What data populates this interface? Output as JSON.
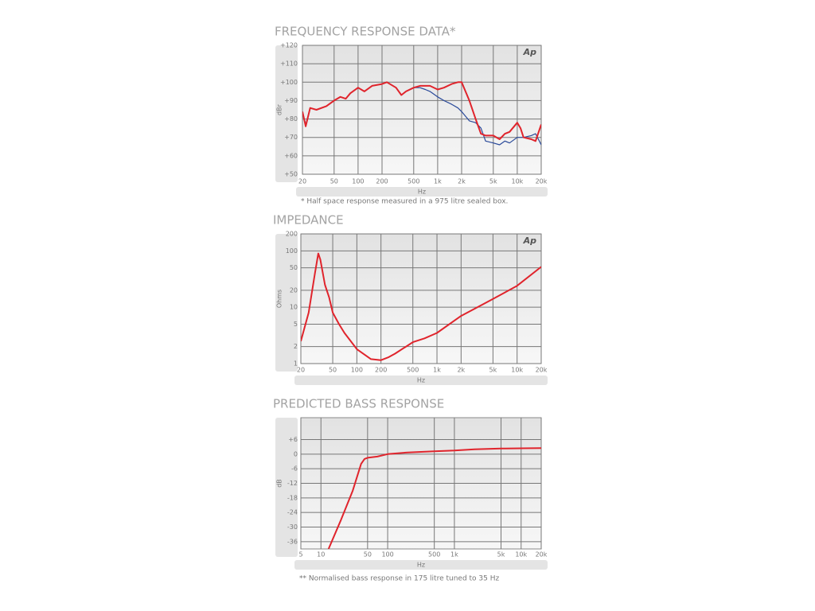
{
  "chart_data": [
    {
      "type": "line",
      "title": "FREQUENCY RESPONSE DATA*",
      "logo": "Ap",
      "y_label": "dBr",
      "x_label": "Hz",
      "note": "* Half space response measured in a 975 litre sealed box.",
      "log_x": true,
      "log_y": false,
      "grid": true,
      "xlim": [
        20,
        20000
      ],
      "xticks": [
        20,
        50,
        100,
        200,
        500,
        {
          "value": 1000,
          "label": "1k"
        },
        {
          "value": 2000,
          "label": "2k"
        },
        {
          "value": 5000,
          "label": "5k"
        },
        {
          "value": 10000,
          "label": "10k"
        },
        {
          "value": 20000,
          "label": "20k"
        }
      ],
      "ylim": [
        50,
        120
      ],
      "yticks": [
        {
          "value": 50,
          "label": "+50"
        },
        {
          "value": 60,
          "label": "+60"
        },
        {
          "value": 70,
          "label": "+70"
        },
        {
          "value": 80,
          "label": "+80"
        },
        {
          "value": 90,
          "label": "+90"
        },
        {
          "value": 100,
          "label": "+100"
        },
        {
          "value": 110,
          "label": "+110"
        },
        {
          "value": 120,
          "label": "+120"
        }
      ],
      "x": [
        20,
        22,
        25,
        30,
        40,
        50,
        60,
        70,
        80,
        100,
        120,
        150,
        200,
        230,
        300,
        350,
        400,
        500,
        600,
        700,
        800,
        1000,
        1200,
        1500,
        1800,
        2000,
        2500,
        3000,
        3500,
        4000,
        5000,
        6000,
        7000,
        8000,
        10000,
        11000,
        12000,
        15000,
        17000,
        20000
      ],
      "series": [
        {
          "color": "#2a4a9a",
          "width": 1.2,
          "values": [
            84,
            77,
            86,
            85,
            87,
            90,
            92,
            91,
            94,
            97,
            95,
            98,
            99,
            100,
            97,
            93,
            95,
            97,
            97,
            96,
            95,
            92,
            90,
            88,
            86,
            84,
            79,
            78,
            75,
            68,
            67,
            66,
            68,
            67,
            70,
            70,
            70,
            71,
            72,
            66
          ]
        },
        {
          "color": "#e0242c",
          "width": 2,
          "values": [
            84,
            76,
            86,
            85,
            87,
            90,
            92,
            91,
            94,
            97,
            95,
            98,
            99,
            100,
            97,
            93,
            95,
            97,
            98,
            98,
            98,
            96,
            97,
            99,
            100,
            100,
            90,
            80,
            72,
            71,
            71,
            69,
            72,
            73,
            78,
            75,
            70,
            69,
            68,
            77
          ]
        }
      ]
    },
    {
      "type": "line",
      "title": "IMPEDANCE",
      "logo": "Ap",
      "y_label": "Ohms",
      "x_label": "Hz",
      "log_x": true,
      "log_y": true,
      "grid": true,
      "xlim": [
        20,
        20000
      ],
      "xticks": [
        20,
        50,
        100,
        200,
        500,
        {
          "value": 1000,
          "label": "1k"
        },
        {
          "value": 2000,
          "label": "2k"
        },
        {
          "value": 5000,
          "label": "5k"
        },
        {
          "value": 10000,
          "label": "10k"
        },
        {
          "value": 20000,
          "label": "20k"
        }
      ],
      "ylim": [
        1,
        200
      ],
      "yticks": [
        1,
        2,
        5,
        10,
        20,
        50,
        100,
        200
      ],
      "x": [
        20,
        25,
        30,
        33,
        35,
        40,
        45,
        50,
        60,
        70,
        100,
        150,
        200,
        250,
        300,
        500,
        700,
        1000,
        2000,
        5000,
        10000,
        20000
      ],
      "series": [
        {
          "color": "#e0242c",
          "width": 2,
          "values": [
            2.5,
            8,
            40,
            90,
            70,
            25,
            15,
            8,
            5,
            3.5,
            1.8,
            1.2,
            1.15,
            1.3,
            1.5,
            2.4,
            2.8,
            3.5,
            7,
            14,
            24,
            52
          ]
        }
      ]
    },
    {
      "type": "line",
      "title": "PREDICTED BASS RESPONSE",
      "y_label": "dB",
      "x_label": "Hz",
      "note": "** Normalised bass response in 175 litre tuned to 35 Hz",
      "log_x": true,
      "log_y": false,
      "grid": true,
      "xlim": [
        5,
        20000
      ],
      "xticks": [
        5,
        10,
        50,
        100,
        500,
        {
          "value": 1000,
          "label": "1k"
        },
        {
          "value": 5000,
          "label": "5k"
        },
        {
          "value": 10000,
          "label": "10k"
        },
        {
          "value": 20000,
          "label": "20k"
        }
      ],
      "ylim": [
        -39,
        15
      ],
      "yticks": [
        -36,
        -30,
        -24,
        -18,
        -12,
        -6,
        0,
        {
          "value": 6,
          "label": "+6"
        }
      ],
      "x": [
        13,
        20,
        30,
        40,
        45,
        50,
        70,
        100,
        200,
        500,
        1000,
        2000,
        5000,
        10000,
        20000
      ],
      "series": [
        {
          "color": "#e0242c",
          "width": 2,
          "values": [
            -39,
            -27,
            -15,
            -4,
            -2,
            -1.5,
            -1,
            0,
            0.7,
            1.2,
            1.5,
            2,
            2.3,
            2.4,
            2.5
          ]
        }
      ]
    }
  ]
}
